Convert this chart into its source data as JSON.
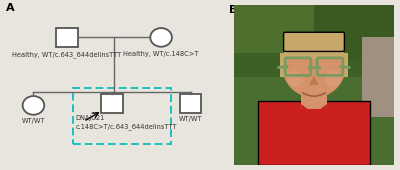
{
  "bg_color": "#e8e5de",
  "panel_a_label": "A",
  "panel_b_label": "B",
  "father_label": "Healthy, WT/c.643_644delinsTTT",
  "mother_label": "Healthy, WT/c.148C>T",
  "child1_label": "WT/WT",
  "child2_label": "DNAJC21\nc.148C>T/c.643_644delinsTTT",
  "child3_label": "WT/WT",
  "dashed_box_color": "#1dbfbf",
  "line_color": "#666666",
  "text_color": "#333333",
  "shape_fill": "#ffffff",
  "shape_edge": "#555555",
  "photo_bg_top": "#4a7a2a",
  "photo_bg_bot": "#3a6a1a",
  "photo_face": "#d4936a",
  "photo_hair": "#c8a060",
  "photo_shirt": "#cc2020",
  "photo_glasses": "#7a9a60",
  "photo_wall": "#8a7a6a"
}
